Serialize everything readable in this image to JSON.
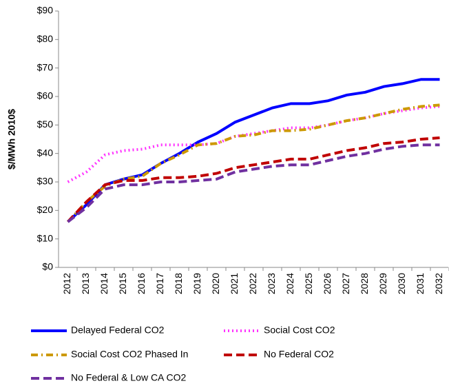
{
  "chart_data": {
    "type": "line",
    "y_label": "$/MWh 2010$",
    "categories": [
      "2012",
      "2013",
      "2014",
      "2015",
      "2016",
      "2017",
      "2018",
      "2019",
      "2020",
      "2021",
      "2022",
      "2023",
      "2024",
      "2025",
      "2026",
      "2027",
      "2028",
      "2029",
      "2030",
      "2031",
      "2032"
    ],
    "ylim": [
      0,
      90
    ],
    "yticks": [
      {
        "value": 0,
        "label": "$0"
      },
      {
        "value": 10,
        "label": "$10"
      },
      {
        "value": 20,
        "label": "$20"
      },
      {
        "value": 30,
        "label": "$30"
      },
      {
        "value": 40,
        "label": "$40"
      },
      {
        "value": 50,
        "label": "$50"
      },
      {
        "value": 60,
        "label": "$60"
      },
      {
        "value": 70,
        "label": "$70"
      },
      {
        "value": 80,
        "label": "$80"
      },
      {
        "value": 90,
        "label": "$90"
      }
    ],
    "grid": false,
    "legend": "bottom",
    "series": [
      {
        "name": "Delayed Federal CO2",
        "color": "#0000ff",
        "dash": "solid",
        "values": [
          16,
          22,
          29,
          31,
          32.5,
          36.5,
          40,
          44,
          47,
          51,
          53.5,
          56,
          57.5,
          57.5,
          58.5,
          60.5,
          61.5,
          63.5,
          64.5,
          66,
          66
        ]
      },
      {
        "name": "Social Cost CO2",
        "color": "#ff33ff",
        "dash": "dot",
        "values": [
          30,
          33.5,
          39.5,
          41,
          41.5,
          43,
          43,
          43,
          43.5,
          46,
          47,
          48,
          49,
          49,
          50,
          51.5,
          52.5,
          54,
          55,
          56,
          56.5
        ]
      },
      {
        "name": "Social Cost CO2 Phased In",
        "color": "#cc9900",
        "dash": "dashdot",
        "values": [
          16,
          23,
          28.5,
          31,
          32,
          36.5,
          39.5,
          43,
          43.5,
          46,
          46.5,
          48,
          48,
          48.5,
          50,
          51.5,
          52.5,
          54,
          55.5,
          56.5,
          57
        ]
      },
      {
        "name": "No Federal CO2",
        "color": "#c00000",
        "dash": "dash",
        "values": [
          16,
          23,
          29,
          30.5,
          30.5,
          31.5,
          31.5,
          32,
          33,
          35,
          36,
          37,
          38,
          38,
          39.5,
          41,
          42,
          43.5,
          44,
          45,
          45.5
        ]
      },
      {
        "name": "No Federal & Low CA CO2",
        "color": "#7030a0",
        "dash": "dash",
        "values": [
          16,
          21,
          27.5,
          29,
          29,
          30,
          30,
          30.5,
          31,
          33.5,
          34.5,
          35.5,
          36,
          36,
          37.5,
          39,
          40,
          41.5,
          42.5,
          43,
          43
        ]
      }
    ]
  }
}
